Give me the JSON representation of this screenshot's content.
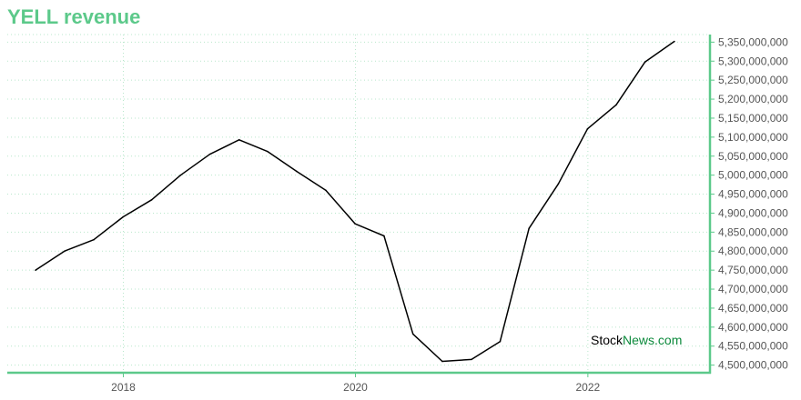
{
  "title": "YELL revenue",
  "watermark": {
    "part1": "Stock",
    "part2": "News.com"
  },
  "colors": {
    "title": "#5cc98a",
    "axis": "#5cc98a",
    "grid": "#b9e7cc",
    "line": "#000000",
    "watermark_dark": "#000000",
    "watermark_green": "#0c8a3c"
  },
  "chart_data": {
    "type": "line",
    "title": "YELL revenue",
    "xlabel": "",
    "ylabel": "",
    "x_ticks": [
      "2018",
      "2020",
      "2022"
    ],
    "y_ticks": [
      "4,500,000,000",
      "4,550,000,000",
      "4,600,000,000",
      "4,650,000,000",
      "4,700,000,000",
      "4,750,000,000",
      "4,800,000,000",
      "4,850,000,000",
      "4,900,000,000",
      "4,950,000,000",
      "5,000,000,000",
      "5,050,000,000",
      "5,100,000,000",
      "5,150,000,000",
      "5,200,000,000",
      "5,250,000,000",
      "5,300,000,000",
      "5,350,000,000"
    ],
    "ylim": [
      4480000000,
      5370000000
    ],
    "y_axis_side": "right",
    "grid": true,
    "series": [
      {
        "x": [
          "2017-03-31",
          "2017-06-30",
          "2017-09-30",
          "2017-12-31",
          "2018-03-31",
          "2018-06-30",
          "2018-09-30",
          "2018-12-31",
          "2019-03-31",
          "2019-06-30",
          "2019-09-30",
          "2019-12-31",
          "2020-03-31",
          "2020-06-30",
          "2020-09-30",
          "2020-12-31",
          "2021-03-31",
          "2021-06-30",
          "2021-09-30",
          "2021-12-31",
          "2022-03-31",
          "2022-06-30",
          "2022-09-30"
        ],
        "values": [
          4750000000,
          4800000000,
          4830000000,
          4890000000,
          4935000000,
          5000000000,
          5055000000,
          5093000000,
          5062000000,
          5010000000,
          4960000000,
          4872000000,
          4840000000,
          4582000000,
          4510000000,
          4515000000,
          4562000000,
          4860000000,
          4977000000,
          5122000000,
          5185000000,
          5298000000,
          5352000000
        ]
      }
    ]
  }
}
